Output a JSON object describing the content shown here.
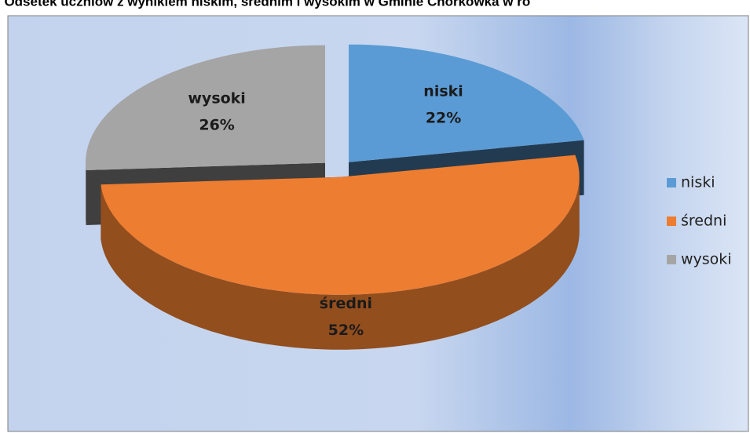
{
  "chart_data": {
    "type": "pie",
    "title": ". Odsetek uczniów z wynikiem niskim, średnim i wysokim w Gminie Chorkówka w ro",
    "categories": [
      "niski",
      "średni",
      "wysoki"
    ],
    "values": [
      22,
      52,
      26
    ],
    "value_labels": [
      "22%",
      "52%",
      "26%"
    ],
    "colors": [
      "#5b9bd5",
      "#ed7d31",
      "#a5a5a5"
    ],
    "legend": "right"
  }
}
